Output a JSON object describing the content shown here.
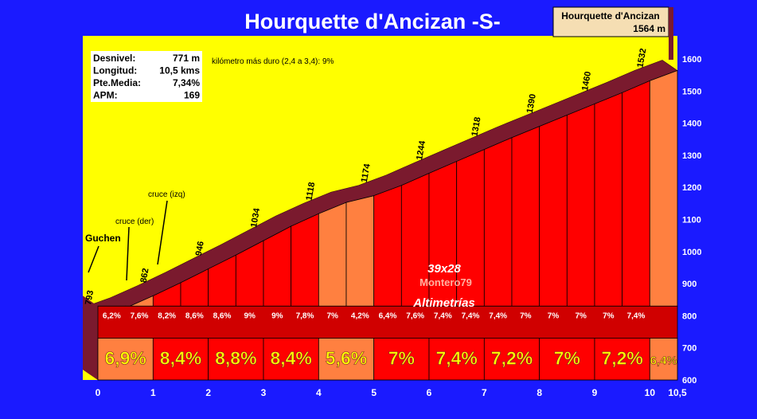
{
  "chart_data": {
    "type": "area",
    "title": "Hourquette d'Ancizan -S-",
    "summit": {
      "name": "Hourquette d'Ancizan",
      "altitude": "1564 m"
    },
    "stats": [
      {
        "label": "Desnivel:",
        "value": "771 m"
      },
      {
        "label": "Longitud:",
        "value": "10,5 kms"
      },
      {
        "label": "Pte.Media:",
        "value": "7,34%"
      },
      {
        "label": "APM:",
        "value": "169"
      }
    ],
    "hardest_km": "kilómetro más duro (2,4 a 3,4):   9%",
    "x_unit": "km",
    "y_unit": "m",
    "xlim": [
      0,
      10.5
    ],
    "ylim": [
      600,
      1600
    ],
    "x_ticks": [
      "0",
      "1",
      "2",
      "3",
      "4",
      "5",
      "6",
      "7",
      "8",
      "9",
      "10",
      "10,5"
    ],
    "y_ticks": [
      "600",
      "700",
      "800",
      "900",
      "1000",
      "1100",
      "1200",
      "1300",
      "1400",
      "1500",
      "1600"
    ],
    "segments_500m": [
      {
        "from": 0,
        "to": 0.5,
        "grade": "6,2%"
      },
      {
        "from": 0.5,
        "to": 1,
        "grade": "7,6%"
      },
      {
        "from": 1,
        "to": 1.5,
        "grade": "8,2%"
      },
      {
        "from": 1.5,
        "to": 2,
        "grade": "8,6%"
      },
      {
        "from": 2,
        "to": 2.5,
        "grade": "8,6%"
      },
      {
        "from": 2.5,
        "to": 3,
        "grade": "9%"
      },
      {
        "from": 3,
        "to": 3.5,
        "grade": "9%"
      },
      {
        "from": 3.5,
        "to": 4,
        "grade": "7,8%"
      },
      {
        "from": 4,
        "to": 4.5,
        "grade": "7%"
      },
      {
        "from": 4.5,
        "to": 5,
        "grade": "4,2%"
      },
      {
        "from": 5,
        "to": 5.5,
        "grade": "6,4%"
      },
      {
        "from": 5.5,
        "to": 6,
        "grade": "7,6%"
      },
      {
        "from": 6,
        "to": 6.5,
        "grade": "7,4%"
      },
      {
        "from": 6.5,
        "to": 7,
        "grade": "7,4%"
      },
      {
        "from": 7,
        "to": 7.5,
        "grade": "7,4%"
      },
      {
        "from": 7.5,
        "to": 8,
        "grade": "7%"
      },
      {
        "from": 8,
        "to": 8.5,
        "grade": "7%"
      },
      {
        "from": 8.5,
        "to": 9,
        "grade": "7%"
      },
      {
        "from": 9,
        "to": 9.5,
        "grade": "7%"
      },
      {
        "from": 9.5,
        "to": 10,
        "grade": "7,4%"
      }
    ],
    "segments_km": [
      {
        "from": 0,
        "to": 1,
        "grade": "6,9%",
        "color": "#ff8040"
      },
      {
        "from": 1,
        "to": 2,
        "grade": "8,4%",
        "color": "#ff0000"
      },
      {
        "from": 2,
        "to": 3,
        "grade": "8,8%",
        "color": "#ff0000"
      },
      {
        "from": 3,
        "to": 4,
        "grade": "8,4%",
        "color": "#ff0000"
      },
      {
        "from": 4,
        "to": 5,
        "grade": "5,6%",
        "color": "#ff8040"
      },
      {
        "from": 5,
        "to": 6,
        "grade": "7%",
        "color": "#ff0000"
      },
      {
        "from": 6,
        "to": 7,
        "grade": "7,4%",
        "color": "#ff0000"
      },
      {
        "from": 7,
        "to": 8,
        "grade": "7,2%",
        "color": "#ff0000"
      },
      {
        "from": 8,
        "to": 9,
        "grade": "7%",
        "color": "#ff0000"
      },
      {
        "from": 9,
        "to": 10,
        "grade": "7,2%",
        "color": "#ff0000"
      },
      {
        "from": 10,
        "to": 10.5,
        "grade": "6,4%",
        "color": "#ff8040"
      }
    ],
    "profile": [
      {
        "x": 0,
        "y": 793
      },
      {
        "x": 0.5,
        "y": 824
      },
      {
        "x": 1,
        "y": 862
      },
      {
        "x": 1.5,
        "y": 903
      },
      {
        "x": 2,
        "y": 946
      },
      {
        "x": 2.5,
        "y": 989
      },
      {
        "x": 3,
        "y": 1034
      },
      {
        "x": 3.5,
        "y": 1079
      },
      {
        "x": 4,
        "y": 1118
      },
      {
        "x": 4.5,
        "y": 1153
      },
      {
        "x": 5,
        "y": 1174
      },
      {
        "x": 5.5,
        "y": 1206
      },
      {
        "x": 6,
        "y": 1244
      },
      {
        "x": 6.5,
        "y": 1281
      },
      {
        "x": 7,
        "y": 1318
      },
      {
        "x": 7.5,
        "y": 1355
      },
      {
        "x": 8,
        "y": 1390
      },
      {
        "x": 8.5,
        "y": 1425
      },
      {
        "x": 9,
        "y": 1460
      },
      {
        "x": 9.5,
        "y": 1495
      },
      {
        "x": 10,
        "y": 1532
      },
      {
        "x": 10.5,
        "y": 1564
      }
    ],
    "altitude_labels": [
      {
        "x": 0,
        "text": "793"
      },
      {
        "x": 1,
        "text": "862"
      },
      {
        "x": 2,
        "text": "946"
      },
      {
        "x": 3,
        "text": "1034"
      },
      {
        "x": 4,
        "text": "1118"
      },
      {
        "x": 5,
        "text": "1174"
      },
      {
        "x": 6,
        "text": "1244"
      },
      {
        "x": 7,
        "text": "1318"
      },
      {
        "x": 8,
        "text": "1390"
      },
      {
        "x": 9,
        "text": "1460"
      },
      {
        "x": 10,
        "text": "1532"
      }
    ],
    "annotations": [
      {
        "text": "Guchen",
        "x": 0.1
      },
      {
        "text": "cruce (der)",
        "x": 0.55
      },
      {
        "text": "cruce (izq)",
        "x": 1.1
      }
    ],
    "center_labels": [
      "39x28",
      "Montero79",
      "Altimetrías"
    ],
    "colors": {
      "background": "#1a1aff",
      "sky": "#ffff00",
      "profile_top": "#7a1a2e",
      "steep": "#ff0000",
      "moderate": "#ff8040",
      "grade_text": "#ffff00",
      "axis_text": "#ffffff"
    }
  }
}
